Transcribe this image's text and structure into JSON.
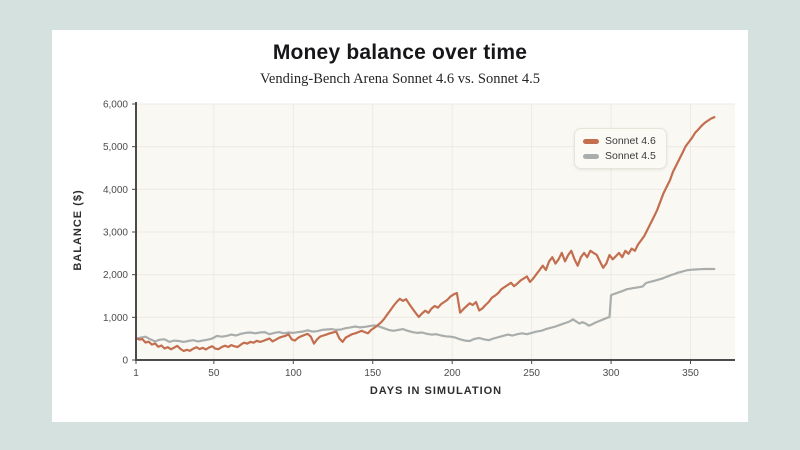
{
  "page": {
    "background": "#d5e1de",
    "card_background": "#ffffff"
  },
  "header": {
    "title": "Money balance over time",
    "subtitle": "Vending-Bench Arena Sonnet 4.6 vs. Sonnet 4.5"
  },
  "chart_data": {
    "type": "line",
    "title": "Money balance over time",
    "subtitle": "Vending-Bench Arena Sonnet 4.6 vs. Sonnet 4.5",
    "xlabel": "DAYS IN SIMULATION",
    "ylabel": "BALANCE ($)",
    "xlim": [
      1,
      378
    ],
    "ylim": [
      0,
      6000
    ],
    "x_ticks": [
      1,
      50,
      100,
      150,
      200,
      250,
      300,
      350
    ],
    "x_tick_labels": [
      "1",
      "50",
      "100",
      "150",
      "200",
      "250",
      "300",
      "350"
    ],
    "y_ticks": [
      0,
      1000,
      2000,
      3000,
      4000,
      5000,
      6000
    ],
    "y_tick_labels": [
      "0",
      "1,000",
      "2,000",
      "3,000",
      "4,000",
      "5,000",
      "6,000"
    ],
    "grid": true,
    "grid_color": "#edeae3",
    "axis_color": "#4b4b4b",
    "plot_background": "#faf8f3",
    "tick_label_color": "#4c4c4c",
    "legend_position": "top-right-inside",
    "series": [
      {
        "name": "Sonnet 4.6",
        "color": "#c26e4f",
        "points": [
          [
            1,
            510
          ],
          [
            3,
            480
          ],
          [
            5,
            490
          ],
          [
            7,
            410
          ],
          [
            9,
            430
          ],
          [
            11,
            360
          ],
          [
            13,
            390
          ],
          [
            15,
            310
          ],
          [
            17,
            340
          ],
          [
            19,
            270
          ],
          [
            21,
            300
          ],
          [
            23,
            250
          ],
          [
            25,
            290
          ],
          [
            27,
            330
          ],
          [
            29,
            260
          ],
          [
            31,
            210
          ],
          [
            33,
            240
          ],
          [
            35,
            215
          ],
          [
            37,
            265
          ],
          [
            39,
            300
          ],
          [
            41,
            255
          ],
          [
            43,
            285
          ],
          [
            45,
            245
          ],
          [
            47,
            295
          ],
          [
            49,
            320
          ],
          [
            51,
            265
          ],
          [
            53,
            255
          ],
          [
            55,
            305
          ],
          [
            57,
            335
          ],
          [
            59,
            305
          ],
          [
            61,
            350
          ],
          [
            63,
            320
          ],
          [
            65,
            305
          ],
          [
            67,
            360
          ],
          [
            69,
            405
          ],
          [
            71,
            385
          ],
          [
            73,
            425
          ],
          [
            75,
            405
          ],
          [
            77,
            450
          ],
          [
            79,
            425
          ],
          [
            81,
            445
          ],
          [
            83,
            475
          ],
          [
            85,
            505
          ],
          [
            87,
            435
          ],
          [
            89,
            475
          ],
          [
            91,
            520
          ],
          [
            93,
            545
          ],
          [
            95,
            565
          ],
          [
            97,
            605
          ],
          [
            99,
            485
          ],
          [
            101,
            455
          ],
          [
            103,
            520
          ],
          [
            105,
            555
          ],
          [
            107,
            585
          ],
          [
            109,
            615
          ],
          [
            111,
            545
          ],
          [
            113,
            385
          ],
          [
            115,
            485
          ],
          [
            117,
            550
          ],
          [
            119,
            575
          ],
          [
            121,
            600
          ],
          [
            123,
            625
          ],
          [
            125,
            645
          ],
          [
            127,
            665
          ],
          [
            129,
            505
          ],
          [
            131,
            425
          ],
          [
            133,
            525
          ],
          [
            135,
            565
          ],
          [
            137,
            605
          ],
          [
            139,
            625
          ],
          [
            141,
            655
          ],
          [
            143,
            685
          ],
          [
            145,
            655
          ],
          [
            147,
            625
          ],
          [
            149,
            705
          ],
          [
            151,
            755
          ],
          [
            153,
            810
          ],
          [
            155,
            875
          ],
          [
            157,
            955
          ],
          [
            159,
            1060
          ],
          [
            161,
            1160
          ],
          [
            163,
            1265
          ],
          [
            165,
            1360
          ],
          [
            167,
            1435
          ],
          [
            169,
            1385
          ],
          [
            171,
            1425
          ],
          [
            173,
            1310
          ],
          [
            175,
            1205
          ],
          [
            177,
            1105
          ],
          [
            179,
            1010
          ],
          [
            181,
            1090
          ],
          [
            183,
            1155
          ],
          [
            185,
            1105
          ],
          [
            187,
            1205
          ],
          [
            189,
            1265
          ],
          [
            191,
            1225
          ],
          [
            193,
            1310
          ],
          [
            195,
            1360
          ],
          [
            197,
            1410
          ],
          [
            199,
            1490
          ],
          [
            201,
            1540
          ],
          [
            203,
            1570
          ],
          [
            205,
            1110
          ],
          [
            207,
            1190
          ],
          [
            209,
            1260
          ],
          [
            211,
            1330
          ],
          [
            213,
            1290
          ],
          [
            215,
            1360
          ],
          [
            217,
            1160
          ],
          [
            219,
            1210
          ],
          [
            221,
            1290
          ],
          [
            223,
            1360
          ],
          [
            225,
            1460
          ],
          [
            227,
            1510
          ],
          [
            229,
            1570
          ],
          [
            231,
            1660
          ],
          [
            233,
            1710
          ],
          [
            235,
            1760
          ],
          [
            237,
            1810
          ],
          [
            239,
            1730
          ],
          [
            241,
            1790
          ],
          [
            243,
            1860
          ],
          [
            245,
            1910
          ],
          [
            247,
            1960
          ],
          [
            249,
            1830
          ],
          [
            251,
            1910
          ],
          [
            253,
            2010
          ],
          [
            255,
            2110
          ],
          [
            257,
            2210
          ],
          [
            259,
            2110
          ],
          [
            261,
            2310
          ],
          [
            263,
            2410
          ],
          [
            265,
            2260
          ],
          [
            267,
            2360
          ],
          [
            269,
            2510
          ],
          [
            271,
            2310
          ],
          [
            273,
            2460
          ],
          [
            275,
            2560
          ],
          [
            277,
            2360
          ],
          [
            279,
            2210
          ],
          [
            281,
            2410
          ],
          [
            283,
            2510
          ],
          [
            285,
            2410
          ],
          [
            287,
            2560
          ],
          [
            289,
            2510
          ],
          [
            291,
            2460
          ],
          [
            293,
            2310
          ],
          [
            295,
            2160
          ],
          [
            297,
            2260
          ],
          [
            299,
            2460
          ],
          [
            301,
            2360
          ],
          [
            303,
            2430
          ],
          [
            305,
            2510
          ],
          [
            307,
            2410
          ],
          [
            309,
            2560
          ],
          [
            311,
            2490
          ],
          [
            313,
            2610
          ],
          [
            315,
            2560
          ],
          [
            317,
            2710
          ],
          [
            319,
            2810
          ],
          [
            321,
            2910
          ],
          [
            323,
            3060
          ],
          [
            325,
            3210
          ],
          [
            327,
            3360
          ],
          [
            329,
            3510
          ],
          [
            331,
            3710
          ],
          [
            333,
            3910
          ],
          [
            335,
            4060
          ],
          [
            337,
            4210
          ],
          [
            339,
            4410
          ],
          [
            341,
            4560
          ],
          [
            343,
            4710
          ],
          [
            345,
            4860
          ],
          [
            347,
            5010
          ],
          [
            349,
            5110
          ],
          [
            351,
            5210
          ],
          [
            353,
            5330
          ],
          [
            355,
            5410
          ],
          [
            357,
            5490
          ],
          [
            359,
            5560
          ],
          [
            361,
            5610
          ],
          [
            363,
            5660
          ],
          [
            365,
            5690
          ]
        ]
      },
      {
        "name": "Sonnet 4.5",
        "color": "#a9aeac",
        "points": [
          [
            1,
            500
          ],
          [
            4,
            525
          ],
          [
            7,
            545
          ],
          [
            10,
            485
          ],
          [
            13,
            435
          ],
          [
            16,
            475
          ],
          [
            19,
            485
          ],
          [
            22,
            425
          ],
          [
            25,
            455
          ],
          [
            28,
            445
          ],
          [
            31,
            425
          ],
          [
            34,
            445
          ],
          [
            37,
            465
          ],
          [
            40,
            435
          ],
          [
            43,
            455
          ],
          [
            46,
            475
          ],
          [
            49,
            505
          ],
          [
            52,
            565
          ],
          [
            55,
            545
          ],
          [
            58,
            565
          ],
          [
            61,
            595
          ],
          [
            64,
            575
          ],
          [
            67,
            615
          ],
          [
            70,
            635
          ],
          [
            73,
            645
          ],
          [
            76,
            625
          ],
          [
            79,
            645
          ],
          [
            82,
            655
          ],
          [
            85,
            605
          ],
          [
            88,
            635
          ],
          [
            91,
            655
          ],
          [
            94,
            625
          ],
          [
            97,
            645
          ],
          [
            100,
            635
          ],
          [
            103,
            655
          ],
          [
            106,
            665
          ],
          [
            109,
            695
          ],
          [
            112,
            665
          ],
          [
            115,
            675
          ],
          [
            118,
            705
          ],
          [
            121,
            715
          ],
          [
            124,
            725
          ],
          [
            127,
            705
          ],
          [
            130,
            715
          ],
          [
            133,
            745
          ],
          [
            136,
            765
          ],
          [
            139,
            785
          ],
          [
            142,
            765
          ],
          [
            145,
            775
          ],
          [
            148,
            795
          ],
          [
            151,
            810
          ],
          [
            154,
            785
          ],
          [
            157,
            745
          ],
          [
            160,
            705
          ],
          [
            163,
            685
          ],
          [
            166,
            705
          ],
          [
            169,
            725
          ],
          [
            172,
            685
          ],
          [
            175,
            655
          ],
          [
            178,
            635
          ],
          [
            181,
            645
          ],
          [
            184,
            615
          ],
          [
            187,
            595
          ],
          [
            190,
            605
          ],
          [
            193,
            575
          ],
          [
            196,
            555
          ],
          [
            199,
            545
          ],
          [
            202,
            525
          ],
          [
            205,
            485
          ],
          [
            208,
            455
          ],
          [
            211,
            445
          ],
          [
            214,
            495
          ],
          [
            217,
            515
          ],
          [
            220,
            485
          ],
          [
            223,
            465
          ],
          [
            226,
            505
          ],
          [
            229,
            535
          ],
          [
            232,
            565
          ],
          [
            235,
            595
          ],
          [
            238,
            575
          ],
          [
            241,
            605
          ],
          [
            244,
            625
          ],
          [
            247,
            605
          ],
          [
            250,
            635
          ],
          [
            253,
            665
          ],
          [
            256,
            685
          ],
          [
            259,
            725
          ],
          [
            262,
            755
          ],
          [
            265,
            785
          ],
          [
            268,
            825
          ],
          [
            271,
            865
          ],
          [
            274,
            905
          ],
          [
            276,
            955
          ],
          [
            278,
            905
          ],
          [
            280,
            855
          ],
          [
            282,
            885
          ],
          [
            284,
            855
          ],
          [
            286,
            805
          ],
          [
            288,
            835
          ],
          [
            290,
            875
          ],
          [
            292,
            905
          ],
          [
            294,
            935
          ],
          [
            296,
            965
          ],
          [
            298,
            995
          ],
          [
            299,
            1005
          ],
          [
            300,
            1520
          ],
          [
            302,
            1550
          ],
          [
            304,
            1575
          ],
          [
            306,
            1600
          ],
          [
            308,
            1630
          ],
          [
            310,
            1660
          ],
          [
            312,
            1672
          ],
          [
            314,
            1684
          ],
          [
            316,
            1696
          ],
          [
            318,
            1708
          ],
          [
            320,
            1725
          ],
          [
            322,
            1805
          ],
          [
            324,
            1825
          ],
          [
            326,
            1845
          ],
          [
            328,
            1865
          ],
          [
            330,
            1885
          ],
          [
            332,
            1905
          ],
          [
            334,
            1935
          ],
          [
            336,
            1965
          ],
          [
            338,
            1995
          ],
          [
            340,
            2015
          ],
          [
            342,
            2045
          ],
          [
            344,
            2065
          ],
          [
            346,
            2085
          ],
          [
            348,
            2105
          ],
          [
            350,
            2115
          ],
          [
            353,
            2122
          ],
          [
            356,
            2128
          ],
          [
            359,
            2132
          ],
          [
            362,
            2132
          ],
          [
            365,
            2132
          ]
        ]
      }
    ]
  }
}
